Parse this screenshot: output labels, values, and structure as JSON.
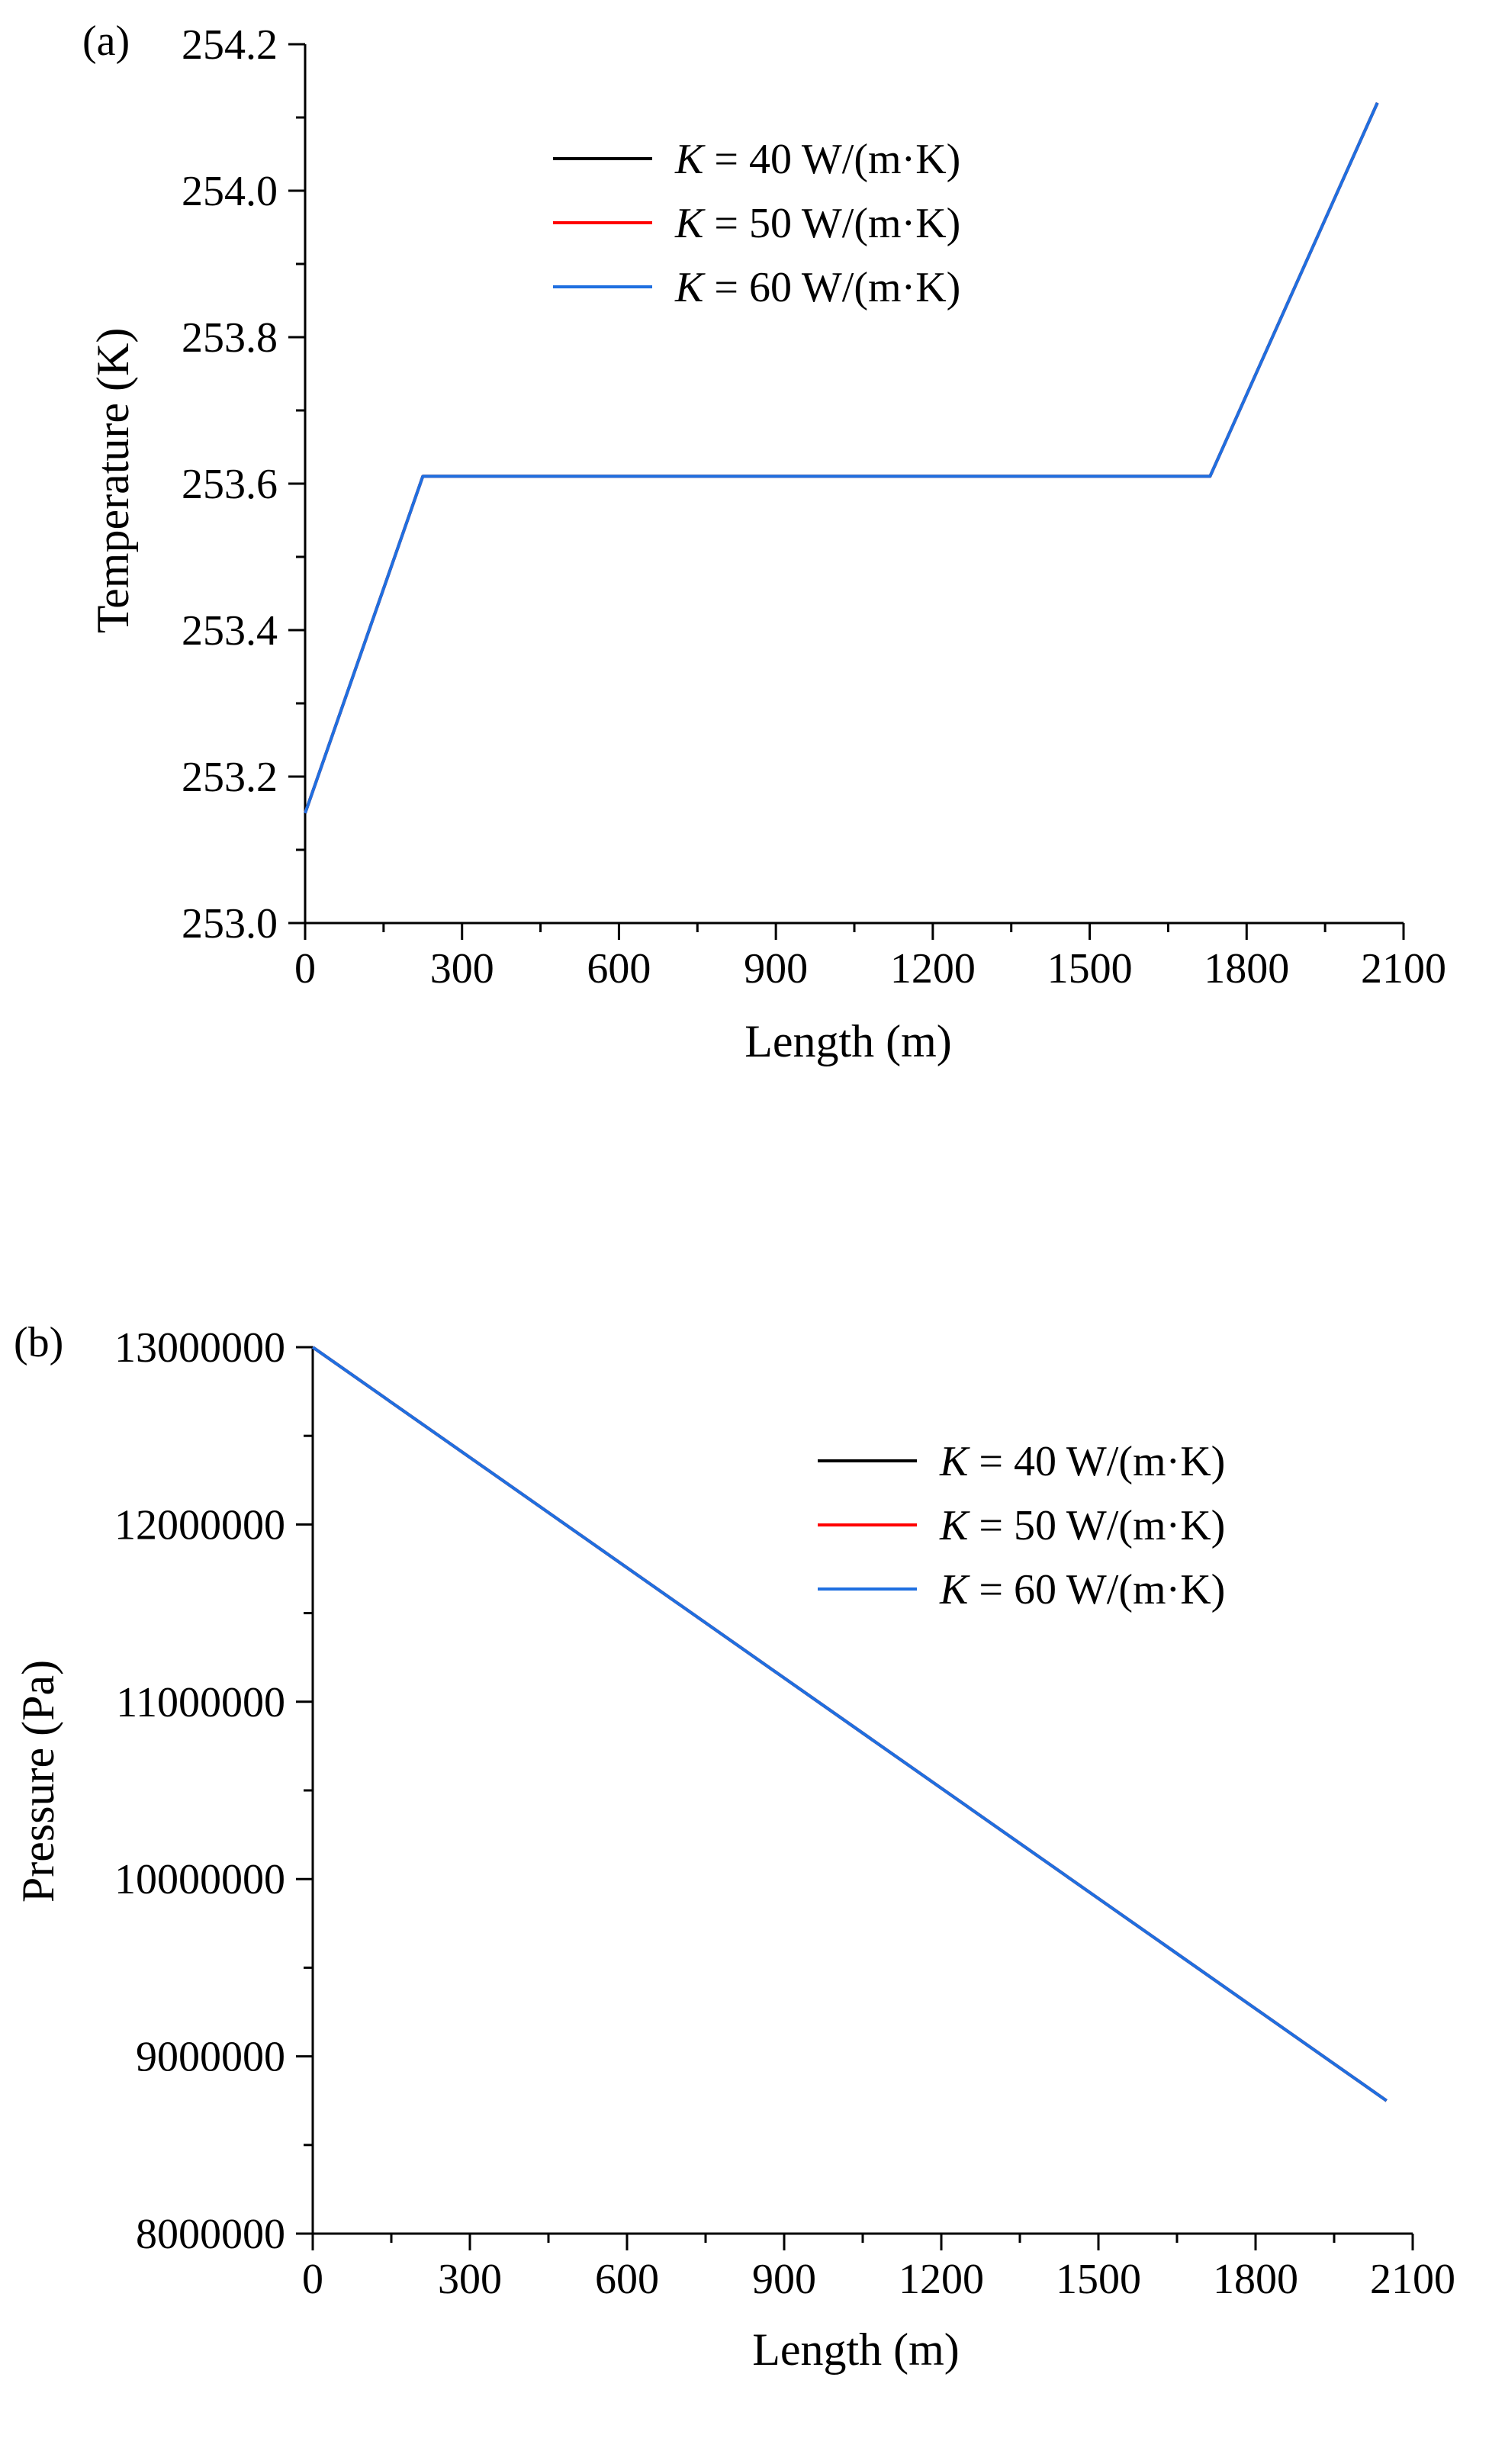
{
  "chart_data": [
    {
      "panel_label": "(a)",
      "type": "line",
      "xlabel": "Length (m)",
      "ylabel": "Temperature (K)",
      "xlim": [
        0,
        2100
      ],
      "ylim": [
        253.0,
        254.2
      ],
      "xticks": [
        "0",
        "300",
        "600",
        "900",
        "1200",
        "1500",
        "1800",
        "2100"
      ],
      "yticks": [
        "253.0",
        "253.2",
        "253.4",
        "253.6",
        "253.8",
        "254.0",
        "254.2"
      ],
      "legend_position": "top-center",
      "series": [
        {
          "name_prefix": "K",
          "name_suffix": " = 40 W/(m·K)",
          "color": "#000000",
          "x": [
            0,
            225,
            1730,
            2050
          ],
          "y": [
            253.15,
            253.61,
            253.61,
            254.12
          ]
        },
        {
          "name_prefix": "K",
          "name_suffix": " = 50 W/(m·K)",
          "color": "#ff0000",
          "x": [
            0,
            225,
            1730,
            2050
          ],
          "y": [
            253.15,
            253.61,
            253.61,
            254.12
          ]
        },
        {
          "name_prefix": "K",
          "name_suffix": " = 60 W/(m·K)",
          "color": "#1f6fe0",
          "x": [
            0,
            225,
            1730,
            2050
          ],
          "y": [
            253.15,
            253.61,
            253.61,
            254.12
          ]
        }
      ]
    },
    {
      "panel_label": "(b)",
      "type": "line",
      "xlabel": "Length (m)",
      "ylabel": "Pressure (Pa)",
      "xlim": [
        0,
        2100
      ],
      "ylim": [
        8000000,
        13000000
      ],
      "xticks": [
        "0",
        "300",
        "600",
        "900",
        "1200",
        "1500",
        "1800",
        "2100"
      ],
      "yticks": [
        "8000000",
        "9000000",
        "10000000",
        "11000000",
        "12000000",
        "13000000"
      ],
      "legend_position": "top-right",
      "series": [
        {
          "name_prefix": "K",
          "name_suffix": " = 40 W/(m·K)",
          "color": "#000000",
          "x": [
            0,
            2050
          ],
          "y": [
            13000000,
            8750000
          ]
        },
        {
          "name_prefix": "K",
          "name_suffix": " = 50 W/(m·K)",
          "color": "#ff0000",
          "x": [
            0,
            2050
          ],
          "y": [
            13000000,
            8750000
          ]
        },
        {
          "name_prefix": "K",
          "name_suffix": " = 60 W/(m·K)",
          "color": "#1f6fe0",
          "x": [
            0,
            2050
          ],
          "y": [
            13000000,
            8750000
          ]
        }
      ]
    }
  ]
}
